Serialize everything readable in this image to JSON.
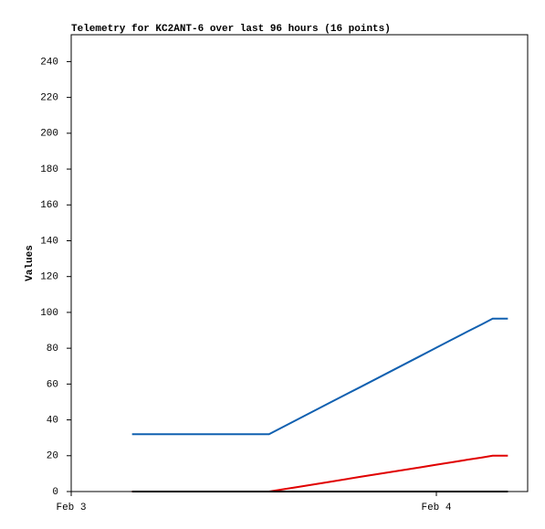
{
  "chart_data": {
    "type": "line",
    "title": "Telemetry for KC2ANT-6 over last 96 hours (16 points)",
    "y_label": "Values",
    "x": [
      4,
      7,
      10,
      13,
      15,
      17,
      19,
      21,
      23,
      24,
      25,
      26,
      27,
      27.7,
      28.2,
      28.7
    ],
    "xlim": [
      0,
      30
    ],
    "xticks": [
      {
        "value": 0,
        "label": "Feb 3"
      },
      {
        "value": 24,
        "label": "Feb 4"
      }
    ],
    "ylim": [
      0,
      255
    ],
    "yticks": [
      0,
      20,
      40,
      60,
      80,
      100,
      120,
      140,
      160,
      180,
      200,
      220,
      240
    ],
    "series": [
      {
        "color": "#1060b0",
        "values": [
          32,
          32,
          32,
          32,
          40.8,
          49.6,
          58.3,
          67.1,
          75.9,
          80.3,
          84.7,
          89.1,
          93.4,
          96.5,
          96.5,
          96.5
        ]
      },
      {
        "color": "#e00000",
        "values": [
          0,
          0,
          0,
          0,
          2.7,
          5.4,
          8.2,
          10.9,
          13.6,
          15.0,
          16.3,
          17.7,
          19.0,
          20,
          20,
          20
        ]
      },
      {
        "color": "#000000",
        "values": [
          0,
          0,
          0,
          0,
          0,
          0,
          0,
          0,
          0,
          0,
          0,
          0,
          0,
          0,
          0,
          0
        ]
      }
    ]
  }
}
